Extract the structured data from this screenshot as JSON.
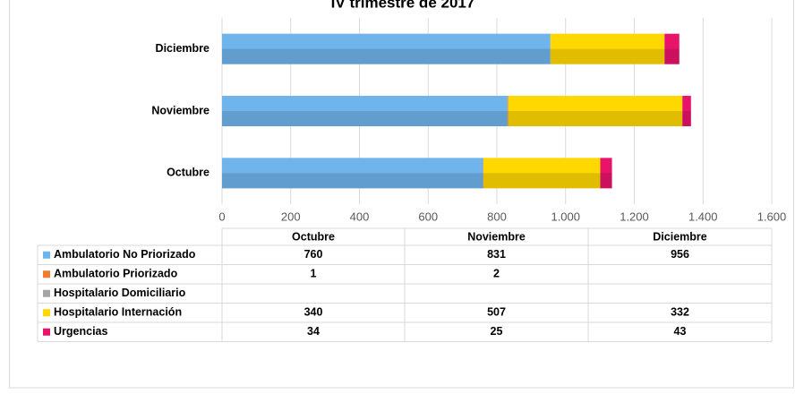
{
  "chart_data": {
    "type": "bar",
    "orientation": "horizontal",
    "stacked": true,
    "title": "IV trimestre de 2017",
    "categories": [
      "Octubre",
      "Noviembre",
      "Diciembre"
    ],
    "series": [
      {
        "name": "Ambulatorio No Priorizado",
        "color": "#6fb4ea",
        "values": [
          760,
          831,
          956
        ]
      },
      {
        "name": "Ambulatorio Priorizado",
        "color": "#ed7d31",
        "values": [
          1,
          2,
          null
        ]
      },
      {
        "name": "Hospitalario Domiciliario",
        "color": "#a5a5a5",
        "values": [
          null,
          null,
          null
        ]
      },
      {
        "name": "Hospitalario Internación",
        "color": "#ffd800",
        "values": [
          340,
          507,
          332
        ]
      },
      {
        "name": "Urgencias",
        "color": "#e8146a",
        "values": [
          34,
          25,
          43
        ]
      }
    ],
    "xlim": [
      0,
      1600
    ],
    "xticks": [
      0,
      200,
      400,
      600,
      800,
      {
        "value": 1000,
        "label": "1.000"
      },
      {
        "value": 1200,
        "label": "1.200"
      },
      {
        "value": 1400,
        "label": "1.400"
      },
      {
        "value": 1600,
        "label": "1.600"
      }
    ],
    "grid": true,
    "data_table": true
  }
}
